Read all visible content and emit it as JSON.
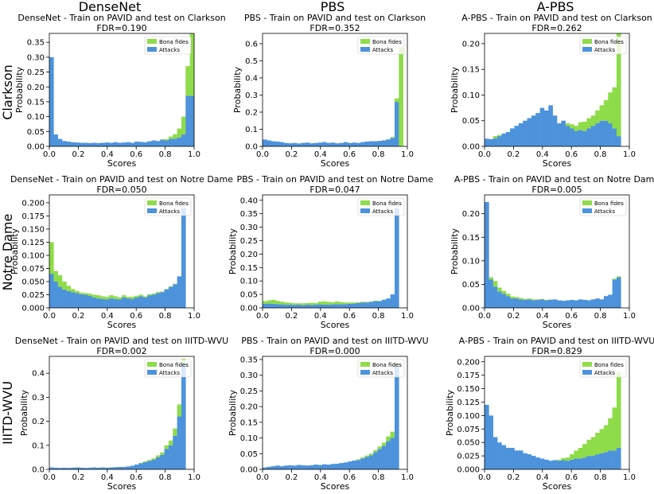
{
  "figure": {
    "column_titles": [
      "DenseNet",
      "PBS",
      "A-PBS"
    ],
    "row_titles": [
      "Clarkson",
      "Notre Dame",
      "IIITD-WVU"
    ]
  },
  "colors": {
    "bona": "#8fdc4a",
    "attack": "#4d93dc"
  },
  "chart_data": [
    {
      "type": "bar",
      "title": "DenseNet - Train on PAVID and test on Clarkson",
      "subtitle": "FDR=0.190",
      "xlabel": "Scores",
      "ylabel": "Probability",
      "xlim": [
        0,
        1
      ],
      "ylim": [
        0,
        0.38
      ],
      "xticks": [
        "0.0",
        "0.2",
        "0.4",
        "0.6",
        "0.8",
        "1.0"
      ],
      "yticks": [
        "0.00",
        "0.05",
        "0.10",
        "0.15",
        "0.20",
        "0.25",
        "0.30",
        "0.35"
      ],
      "legend": "top-right",
      "series": [
        {
          "name": "Bona fides",
          "values": [
            0,
            0,
            0,
            0,
            0,
            0,
            0,
            0,
            0,
            0,
            0,
            0,
            0,
            0,
            0,
            0,
            0,
            0,
            0,
            0,
            0,
            0,
            0,
            0,
            0,
            0,
            0.002,
            0.004,
            0.008,
            0.015,
            0.03,
            0.06,
            0.1,
            0.33
          ]
        },
        {
          "name": "Attacks",
          "values": [
            0.3,
            0.04,
            0.025,
            0.018,
            0.016,
            0.014,
            0.013,
            0.012,
            0.012,
            0.011,
            0.012,
            0.011,
            0.012,
            0.013,
            0.012,
            0.014,
            0.012,
            0.013,
            0.014,
            0.012,
            0.016,
            0.015,
            0.014,
            0.017,
            0.02,
            0.018,
            0.022,
            0.02,
            0.025,
            0.026,
            0.03,
            0.04,
            0.17,
            0.17
          ]
        }
      ]
    },
    {
      "type": "bar",
      "title": "PBS - Train on PAVID and test on Clarkson",
      "subtitle": "FDR=0.352",
      "xlabel": "Scores",
      "ylabel": "Probability",
      "xlim": [
        0,
        1
      ],
      "ylim": [
        0,
        0.66
      ],
      "xticks": [
        "0.0",
        "0.2",
        "0.4",
        "0.6",
        "0.8",
        "1.0"
      ],
      "yticks": [
        "0.0",
        "0.1",
        "0.2",
        "0.3",
        "0.4",
        "0.5",
        "0.6"
      ],
      "legend": "top-right",
      "series": [
        {
          "name": "Bona fides",
          "values": [
            0,
            0,
            0,
            0,
            0,
            0,
            0,
            0,
            0,
            0,
            0,
            0,
            0,
            0,
            0,
            0,
            0,
            0,
            0,
            0,
            0,
            0,
            0,
            0,
            0,
            0,
            0,
            0,
            0,
            0.002,
            0.005,
            0.02,
            0.58,
            0
          ]
        },
        {
          "name": "Attacks",
          "values": [
            0.04,
            0.035,
            0.03,
            0.028,
            0.025,
            0.02,
            0.018,
            0.02,
            0.017,
            0.02,
            0.022,
            0.018,
            0.02,
            0.022,
            0.025,
            0.02,
            0.022,
            0.018,
            0.02,
            0.025,
            0.02,
            0.022,
            0.02,
            0.025,
            0.028,
            0.03,
            0.03,
            0.032,
            0.035,
            0.04,
            0.05,
            0.26,
            0,
            0
          ]
        }
      ]
    },
    {
      "type": "bar",
      "title": "A-PBS - Train on PAVID and test on Clarkson",
      "subtitle": "FDR=0.262",
      "xlabel": "Scores",
      "ylabel": "Probability",
      "xlim": [
        0,
        1
      ],
      "ylim": [
        0,
        0.22
      ],
      "xticks": [
        "0.0",
        "0.2",
        "0.4",
        "0.6",
        "0.8",
        "1.0"
      ],
      "yticks": [
        "0.00",
        "0.05",
        "0.10",
        "0.15",
        "0.20"
      ],
      "legend": "top-right",
      "series": [
        {
          "name": "Bona fides",
          "values": [
            0,
            0,
            0.004,
            0.002,
            0,
            0,
            0,
            0,
            0,
            0,
            0,
            0,
            0,
            0,
            0,
            0,
            0,
            0,
            0,
            0.005,
            0.008,
            0.01,
            0.015,
            0.018,
            0.02,
            0.02,
            0.025,
            0.03,
            0.04,
            0.06,
            0.08,
            0.2,
            0,
            0
          ]
        },
        {
          "name": "Attacks",
          "values": [
            0.015,
            0.014,
            0.016,
            0.02,
            0.025,
            0.028,
            0.035,
            0.04,
            0.045,
            0.05,
            0.055,
            0.06,
            0.065,
            0.075,
            0.07,
            0.08,
            0.06,
            0.045,
            0.05,
            0.04,
            0.035,
            0.03,
            0.032,
            0.03,
            0.035,
            0.04,
            0.045,
            0.05,
            0.05,
            0.045,
            0.035,
            0.02,
            0,
            0
          ]
        }
      ]
    },
    {
      "type": "bar",
      "title": "DenseNet - Train on PAVID and test on Notre Dame",
      "subtitle": "FDR=0.050",
      "xlabel": "Scores",
      "ylabel": "Probability",
      "xlim": [
        0,
        1
      ],
      "ylim": [
        0,
        0.215
      ],
      "xticks": [
        "0.0",
        "0.2",
        "0.4",
        "0.6",
        "0.8",
        "1.0"
      ],
      "yticks": [
        "0.000",
        "0.025",
        "0.050",
        "0.075",
        "0.100",
        "0.125",
        "0.150",
        "0.175",
        "0.200"
      ],
      "legend": "top-right",
      "series": [
        {
          "name": "Bona fides",
          "values": [
            0.06,
            0.02,
            0.022,
            0.015,
            0.01,
            0.006,
            0.004,
            0.003,
            0.003,
            0.004,
            0.005,
            0.006,
            0.005,
            0.005,
            0.006,
            0.005,
            0.004,
            0.004,
            0.003,
            0.004,
            0.003,
            0.003,
            0.002,
            0.002,
            0.002,
            0.002,
            0.001,
            0.001,
            0.001,
            0.001,
            0,
            0,
            0,
            0
          ]
        },
        {
          "name": "Attacks",
          "values": [
            0.065,
            0.05,
            0.04,
            0.035,
            0.032,
            0.03,
            0.028,
            0.026,
            0.025,
            0.023,
            0.02,
            0.018,
            0.017,
            0.016,
            0.018,
            0.017,
            0.016,
            0.02,
            0.018,
            0.017,
            0.02,
            0.022,
            0.02,
            0.024,
            0.025,
            0.028,
            0.03,
            0.035,
            0.04,
            0.045,
            0.06,
            0.19,
            0,
            0
          ]
        }
      ]
    },
    {
      "type": "bar",
      "title": "PBS - Train on PAVID and test on Notre Dame",
      "subtitle": "FDR=0.047",
      "xlabel": "Scores",
      "ylabel": "Probability",
      "xlim": [
        0,
        1
      ],
      "ylim": [
        0,
        0.42
      ],
      "xticks": [
        "0.0",
        "0.2",
        "0.4",
        "0.6",
        "0.8",
        "1.0"
      ],
      "yticks": [
        "0.00",
        "0.05",
        "0.10",
        "0.15",
        "0.20",
        "0.25",
        "0.30",
        "0.35",
        "0.40"
      ],
      "legend": "top-right",
      "series": [
        {
          "name": "Bona fides",
          "values": [
            0.01,
            0.012,
            0.015,
            0.012,
            0.01,
            0.008,
            0.007,
            0.006,
            0.005,
            0.007,
            0.006,
            0.008,
            0.006,
            0.01,
            0.012,
            0.01,
            0.008,
            0.01,
            0.008,
            0.006,
            0.005,
            0.004,
            0.003,
            0.003,
            0.002,
            0.002,
            0.002,
            0.001,
            0.001,
            0,
            0,
            0,
            0,
            0
          ]
        },
        {
          "name": "Attacks",
          "values": [
            0.015,
            0.016,
            0.015,
            0.014,
            0.013,
            0.012,
            0.012,
            0.011,
            0.012,
            0.01,
            0.012,
            0.011,
            0.012,
            0.013,
            0.012,
            0.012,
            0.013,
            0.014,
            0.013,
            0.014,
            0.015,
            0.016,
            0.018,
            0.02,
            0.02,
            0.022,
            0.025,
            0.025,
            0.03,
            0.035,
            0.05,
            0.37,
            0,
            0
          ]
        }
      ]
    },
    {
      "type": "bar",
      "title": "A-PBS - Train on PAVID and test on Notre Dame",
      "subtitle": "FDR=0.005",
      "xlabel": "Scores",
      "ylabel": "Probability",
      "xlim": [
        0,
        1
      ],
      "ylim": [
        0,
        0.24
      ],
      "xticks": [
        "0.0",
        "0.2",
        "0.4",
        "0.6",
        "0.8",
        "1.0"
      ],
      "yticks": [
        "0.00",
        "0.05",
        "0.10",
        "0.15",
        "0.20"
      ],
      "legend": "top-right",
      "series": [
        {
          "name": "Bona fides",
          "values": [
            0,
            0.005,
            0.012,
            0.008,
            0.006,
            0.005,
            0.004,
            0.003,
            0.003,
            0.002,
            0.002,
            0.002,
            0.001,
            0.001,
            0.001,
            0.001,
            0,
            0,
            0,
            0,
            0,
            0,
            0,
            0,
            0,
            0,
            0,
            0,
            0,
            0,
            0.002,
            0.002,
            0,
            0
          ]
        },
        {
          "name": "Attacks",
          "values": [
            0.225,
            0.06,
            0.045,
            0.035,
            0.03,
            0.025,
            0.02,
            0.02,
            0.018,
            0.017,
            0.018,
            0.016,
            0.017,
            0.018,
            0.016,
            0.017,
            0.018,
            0.016,
            0.015,
            0.016,
            0.017,
            0.016,
            0.018,
            0.017,
            0.016,
            0.018,
            0.02,
            0.018,
            0.025,
            0.028,
            0.06,
            0.065,
            0,
            0
          ]
        }
      ]
    },
    {
      "type": "bar",
      "title": "DenseNet - Train on PAVID and test on IIITD-WVU",
      "subtitle": "FDR=0.002",
      "xlabel": "Scores",
      "ylabel": "Probability",
      "xlim": [
        0,
        1
      ],
      "ylim": [
        0,
        0.47
      ],
      "xticks": [
        "0.0",
        "0.2",
        "0.4",
        "0.6",
        "0.8",
        "1.0"
      ],
      "yticks": [
        "0.0",
        "0.1",
        "0.2",
        "0.3",
        "0.4"
      ],
      "legend": "top-right",
      "series": [
        {
          "name": "Bona fides",
          "values": [
            0,
            0,
            0,
            0,
            0,
            0,
            0,
            0,
            0,
            0,
            0,
            0,
            0,
            0,
            0,
            0,
            0,
            0,
            0,
            0,
            0,
            0.002,
            0.003,
            0.004,
            0.006,
            0.008,
            0.01,
            0.015,
            0.02,
            0.03,
            0.05,
            0.02,
            0,
            0
          ]
        },
        {
          "name": "Attacks",
          "values": [
            0.008,
            0.007,
            0.006,
            0.007,
            0.006,
            0.007,
            0.008,
            0.007,
            0.006,
            0.007,
            0.008,
            0.007,
            0.008,
            0.007,
            0.008,
            0.009,
            0.01,
            0.01,
            0.012,
            0.015,
            0.02,
            0.025,
            0.03,
            0.035,
            0.04,
            0.05,
            0.06,
            0.085,
            0.1,
            0.14,
            0.22,
            0.44,
            0,
            0
          ]
        }
      ]
    },
    {
      "type": "bar",
      "title": "PBS - Train on PAVID and test on IIITD-WVU",
      "subtitle": "FDR=0.000",
      "xlabel": "Scores",
      "ylabel": "Probability",
      "xlim": [
        0,
        1
      ],
      "ylim": [
        0,
        0.36
      ],
      "xticks": [
        "0.0",
        "0.2",
        "0.4",
        "0.6",
        "0.8",
        "1.0"
      ],
      "yticks": [
        "0.00",
        "0.05",
        "0.10",
        "0.15",
        "0.20",
        "0.25",
        "0.30",
        "0.35"
      ],
      "legend": "top-right",
      "series": [
        {
          "name": "Bona fides",
          "values": [
            0,
            0,
            0,
            0,
            0,
            0,
            0,
            0,
            0,
            0,
            0,
            0,
            0,
            0,
            0,
            0,
            0,
            0,
            0,
            0,
            0,
            0,
            0.002,
            0.003,
            0.004,
            0.005,
            0.006,
            0.008,
            0.01,
            0.015,
            0.02,
            0.01,
            0,
            0
          ]
        },
        {
          "name": "Attacks",
          "values": [
            0.006,
            0.008,
            0.01,
            0.012,
            0.01,
            0.012,
            0.013,
            0.012,
            0.014,
            0.013,
            0.012,
            0.013,
            0.015,
            0.014,
            0.016,
            0.015,
            0.017,
            0.018,
            0.02,
            0.022,
            0.025,
            0.028,
            0.03,
            0.035,
            0.04,
            0.045,
            0.055,
            0.065,
            0.075,
            0.09,
            0.1,
            0.33,
            0,
            0
          ]
        }
      ]
    },
    {
      "type": "bar",
      "title": "A-PBS - Train on PAVID and test on IIITD-WVU",
      "subtitle": "FDR=0.829",
      "xlabel": "Scores",
      "ylabel": "Probability",
      "xlim": [
        0,
        1
      ],
      "ylim": [
        0,
        0.21
      ],
      "xticks": [
        "0.0",
        "0.2",
        "0.4",
        "0.6",
        "0.8",
        "1.0"
      ],
      "yticks": [
        "0.000",
        "0.025",
        "0.050",
        "0.075",
        "0.100",
        "0.125",
        "0.150",
        "0.175",
        "0.200"
      ],
      "legend": "top-right",
      "series": [
        {
          "name": "Bona fides",
          "values": [
            0,
            0,
            0,
            0,
            0,
            0,
            0,
            0,
            0,
            0,
            0,
            0,
            0,
            0,
            0,
            0,
            0,
            0.002,
            0.004,
            0.006,
            0.01,
            0.015,
            0.02,
            0.025,
            0.03,
            0.035,
            0.04,
            0.045,
            0.05,
            0.06,
            0.08,
            0.14,
            0,
            0
          ]
        },
        {
          "name": "Attacks",
          "values": [
            0.12,
            0.1,
            0.06,
            0.05,
            0.045,
            0.04,
            0.04,
            0.035,
            0.035,
            0.03,
            0.028,
            0.025,
            0.022,
            0.02,
            0.018,
            0.016,
            0.017,
            0.016,
            0.017,
            0.016,
            0.018,
            0.02,
            0.02,
            0.022,
            0.025,
            0.025,
            0.028,
            0.03,
            0.032,
            0.035,
            0.035,
            0.04,
            0,
            0
          ]
        }
      ]
    }
  ]
}
